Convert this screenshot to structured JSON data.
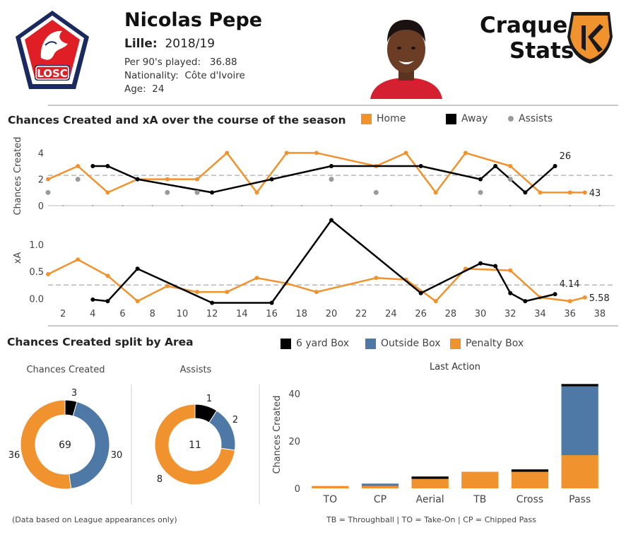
{
  "player": {
    "name": "Nicolas Pepe",
    "club": "Lille:",
    "season": "2018/19",
    "per90_label": "Per 90's played:",
    "per90_value": "36.88",
    "nationality_label": "Nationality:",
    "nationality_value": "Côte d'Ivoire",
    "age_label": "Age:",
    "age_value": "24"
  },
  "logos": {
    "club_badge_text": "LOSC",
    "brand_line1": "Craque",
    "brand_line2": "Stats"
  },
  "colors": {
    "home": "#f0922e",
    "away": "#000000",
    "assists": "#9a9a9a",
    "six_yard": "#000000",
    "outside_box": "#4e79a7",
    "penalty_box": "#f0922e"
  },
  "section1": {
    "title": "Chances Created and xA over the course of the season",
    "legend": {
      "home": "Home",
      "away": "Away",
      "assists": "Assists"
    }
  },
  "section2": {
    "title": "Chances Created split by Area",
    "legend": {
      "six_yard": "6 yard Box",
      "outside_box": "Outside Box",
      "penalty_box": "Penalty Box"
    }
  },
  "chart_data": [
    {
      "type": "line",
      "id": "chances-created-line",
      "ylabel": "Chances Created",
      "ylim": [
        0,
        4.5
      ],
      "yticks": [
        0,
        2,
        4
      ],
      "xlim": [
        1,
        39
      ],
      "reference_line": 2.3,
      "series": [
        {
          "name": "Home",
          "x": [
            1,
            3,
            5,
            7,
            9,
            11,
            13,
            15,
            17,
            19,
            23,
            25,
            27,
            29,
            32,
            34,
            36,
            37
          ],
          "y": [
            2,
            3,
            1,
            2,
            2,
            2,
            4,
            1,
            4,
            4,
            3,
            4,
            1,
            4,
            3,
            1,
            1,
            1
          ]
        },
        {
          "name": "Away",
          "x": [
            4,
            5,
            7,
            12,
            16,
            20,
            26,
            30,
            31,
            32,
            33,
            35
          ],
          "y": [
            3,
            3,
            2,
            1,
            2,
            3,
            3,
            2,
            3,
            2,
            1,
            3
          ]
        },
        {
          "name": "Assists",
          "x": [
            1,
            3,
            9,
            11,
            20,
            23,
            30,
            32
          ],
          "y": [
            1,
            2,
            1,
            1,
            2,
            1,
            1,
            2
          ]
        }
      ],
      "annotations": [
        {
          "series": "Away",
          "text": "26"
        },
        {
          "series": "Home",
          "text": "43"
        }
      ]
    },
    {
      "type": "line",
      "id": "xa-line",
      "ylabel": "xA",
      "ylim": [
        -0.1,
        1.6
      ],
      "yticks": [
        "0.0",
        "0.5",
        "1.0"
      ],
      "xlim": [
        1,
        39
      ],
      "xticks": [
        2,
        4,
        6,
        8,
        10,
        12,
        14,
        16,
        18,
        20,
        22,
        24,
        26,
        28,
        30,
        32,
        34,
        36,
        38
      ],
      "reference_line": 0.25,
      "series": [
        {
          "name": "Home",
          "x": [
            1,
            3,
            5,
            7,
            9,
            11,
            13,
            15,
            17,
            19,
            23,
            25,
            27,
            29,
            32,
            34,
            36,
            37
          ],
          "y": [
            0.45,
            0.72,
            0.42,
            -0.05,
            0.23,
            0.12,
            0.12,
            0.38,
            0.28,
            0.12,
            0.38,
            0.35,
            -0.05,
            0.55,
            0.52,
            0.02,
            -0.05,
            0.02
          ]
        },
        {
          "name": "Away",
          "x": [
            4,
            5,
            7,
            12,
            16,
            20,
            26,
            30,
            31,
            32,
            33,
            35
          ],
          "y": [
            -0.02,
            -0.05,
            0.55,
            -0.08,
            -0.08,
            1.45,
            0.1,
            0.65,
            0.6,
            0.1,
            -0.05,
            0.08
          ]
        }
      ],
      "annotations": [
        {
          "series": "Away",
          "text": "4.14"
        },
        {
          "series": "Home",
          "text": "5.58"
        }
      ]
    },
    {
      "type": "pie",
      "id": "chances-created-donut",
      "title": "Chances Created",
      "total": "69",
      "slices": [
        {
          "name": "6 yard Box",
          "value": 3
        },
        {
          "name": "Outside Box",
          "value": 30
        },
        {
          "name": "Penalty Box",
          "value": 36
        }
      ]
    },
    {
      "type": "pie",
      "id": "assists-donut",
      "title": "Assists",
      "total": "11",
      "slices": [
        {
          "name": "6 yard Box",
          "value": 1
        },
        {
          "name": "Outside Box",
          "value": 2
        },
        {
          "name": "Penalty Box",
          "value": 8
        }
      ]
    },
    {
      "type": "bar",
      "id": "last-action-bar",
      "title": "Last Action",
      "ylabel": "Chances Created",
      "ylim": [
        0,
        45
      ],
      "yticks": [
        0,
        20,
        40
      ],
      "categories": [
        "TO",
        "CP",
        "Aerial",
        "TB",
        "Cross",
        "Pass"
      ],
      "series": [
        {
          "name": "Penalty Box",
          "values": [
            1,
            1,
            4,
            7,
            7,
            14
          ]
        },
        {
          "name": "Outside Box",
          "values": [
            0,
            1,
            0,
            0,
            0,
            29
          ]
        },
        {
          "name": "6 yard Box",
          "values": [
            0,
            0,
            1,
            0,
            1,
            1
          ]
        }
      ]
    }
  ],
  "footnotes": {
    "left": "(Data based on League appearances only)",
    "right": "TB = Throughball |  TO = Take-On | CP = Chipped Pass"
  }
}
